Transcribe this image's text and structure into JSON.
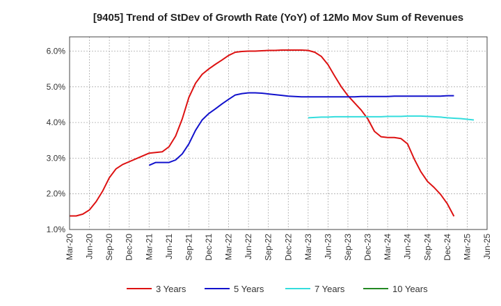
{
  "chart_data": {
    "type": "line",
    "title": "[9405]  Trend of StDev of Growth Rate (YoY) of 12Mo Mov Sum of Revenues",
    "xlabel": "",
    "ylabel": "",
    "ylim": [
      1.0,
      6.4
    ],
    "y_ticks": [
      1.0,
      2.0,
      3.0,
      4.0,
      5.0,
      6.0
    ],
    "y_tick_labels": [
      "1.0%",
      "2.0%",
      "3.0%",
      "4.0%",
      "5.0%",
      "6.0%"
    ],
    "x_tick_labels": [
      "Mar-20",
      "Jun-20",
      "Sep-20",
      "Dec-20",
      "Mar-21",
      "Jun-21",
      "Sep-21",
      "Dec-21",
      "Mar-22",
      "Jun-22",
      "Sep-22",
      "Dec-22",
      "Mar-23",
      "Jun-23",
      "Sep-23",
      "Dec-23",
      "Mar-24",
      "Jun-24",
      "Sep-24",
      "Dec-24",
      "Mar-25",
      "Jun-25"
    ],
    "months_per_tick": 3,
    "grid": true,
    "legend_position": "bottom",
    "series": [
      {
        "name": "3 Years",
        "color": "#dd1111",
        "start_month": 0,
        "values": [
          1.38,
          1.38,
          1.43,
          1.55,
          1.78,
          2.08,
          2.45,
          2.7,
          2.82,
          2.9,
          2.98,
          3.06,
          3.14,
          3.16,
          3.18,
          3.32,
          3.62,
          4.1,
          4.7,
          5.1,
          5.35,
          5.5,
          5.63,
          5.75,
          5.88,
          5.97,
          5.99,
          6.0,
          6.0,
          6.01,
          6.02,
          6.02,
          6.03,
          6.03,
          6.03,
          6.03,
          6.02,
          5.97,
          5.85,
          5.62,
          5.3,
          5.0,
          4.75,
          4.55,
          4.35,
          4.1,
          3.75,
          3.6,
          3.58,
          3.58,
          3.55,
          3.4,
          2.98,
          2.62,
          2.35,
          2.18,
          1.98,
          1.72,
          1.37
        ]
      },
      {
        "name": "5 Years",
        "color": "#1111cc",
        "start_month": 12,
        "values": [
          2.8,
          2.88,
          2.88,
          2.88,
          2.95,
          3.12,
          3.4,
          3.78,
          4.07,
          4.25,
          4.38,
          4.52,
          4.65,
          4.77,
          4.81,
          4.83,
          4.83,
          4.82,
          4.8,
          4.78,
          4.76,
          4.74,
          4.73,
          4.72,
          4.72,
          4.72,
          4.72,
          4.72,
          4.72,
          4.72,
          4.72,
          4.72,
          4.73,
          4.73,
          4.73,
          4.73,
          4.73,
          4.74,
          4.74,
          4.74,
          4.74,
          4.74,
          4.74,
          4.74,
          4.74,
          4.75,
          4.75
        ]
      },
      {
        "name": "7 Years",
        "color": "#33dddd",
        "start_month": 36,
        "values": [
          4.13,
          4.14,
          4.15,
          4.15,
          4.16,
          4.16,
          4.16,
          4.16,
          4.16,
          4.16,
          4.16,
          4.16,
          4.17,
          4.17,
          4.17,
          4.18,
          4.18,
          4.18,
          4.17,
          4.16,
          4.15,
          4.13,
          4.12,
          4.11,
          4.09,
          4.07
        ]
      },
      {
        "name": "10 Years",
        "color": "#228822",
        "start_month": 0,
        "values": []
      }
    ]
  }
}
